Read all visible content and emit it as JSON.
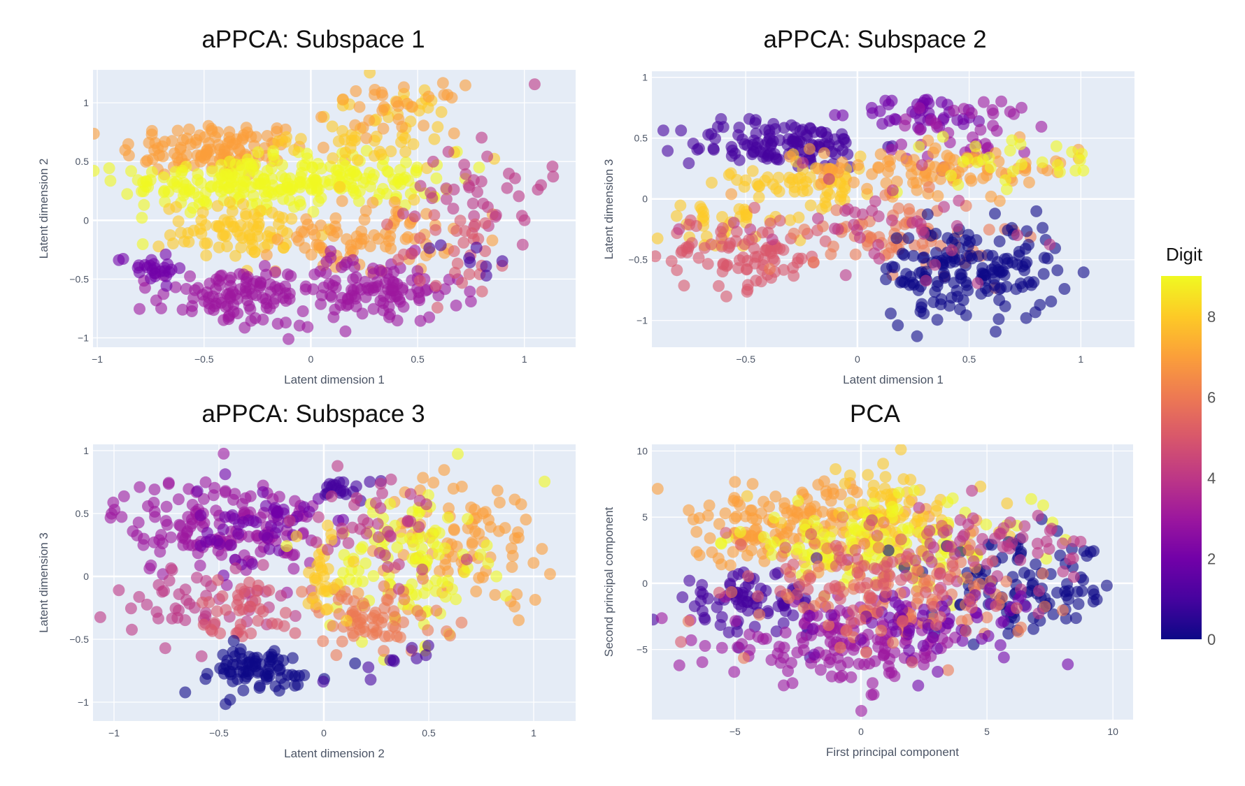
{
  "colorscale": {
    "title": "Digit",
    "ticks": [
      "0",
      "2",
      "4",
      "6",
      "8"
    ],
    "tick_values": [
      0,
      2,
      4,
      6,
      8
    ],
    "range": [
      0,
      9
    ],
    "colors": [
      "#0d0887",
      "#46039f",
      "#7201a8",
      "#9c179e",
      "#bd3786",
      "#d8576b",
      "#ed7953",
      "#fb9f3a",
      "#fdca26",
      "#f0f921"
    ]
  },
  "plot_background": "#e5ecf6",
  "chart_data": [
    {
      "type": "scatter",
      "title": "aPPCA: Subspace 1",
      "xlabel": "Latent dimension 1",
      "ylabel": "Latent dimension 2",
      "xlim": [
        -1.02,
        1.24
      ],
      "ylim": [
        -1.08,
        1.28
      ],
      "xticks": [
        -1,
        -0.5,
        0,
        0.5,
        1
      ],
      "xtick_labels": [
        "−1",
        "−0.5",
        "0",
        "0.5",
        "1"
      ],
      "yticks": [
        -1,
        -0.5,
        0,
        0.5,
        1
      ],
      "ytick_labels": [
        "−1",
        "−0.5",
        "0",
        "0.5",
        "1"
      ],
      "grid": true,
      "clusters": [
        {
          "digit": 7,
          "cx": -0.45,
          "cy": 0.6,
          "sx": 0.22,
          "sy": 0.12,
          "n": 120
        },
        {
          "digit": 9,
          "cx": -0.4,
          "cy": 0.3,
          "sx": 0.25,
          "sy": 0.12,
          "n": 140
        },
        {
          "digit": 9,
          "cx": 0.2,
          "cy": 0.35,
          "sx": 0.25,
          "sy": 0.12,
          "n": 110
        },
        {
          "digit": 8,
          "cx": 0.3,
          "cy": 0.75,
          "sx": 0.2,
          "sy": 0.2,
          "n": 60
        },
        {
          "digit": 7,
          "cx": 0.4,
          "cy": 0.95,
          "sx": 0.15,
          "sy": 0.1,
          "n": 30
        },
        {
          "digit": 8,
          "cx": -0.3,
          "cy": -0.1,
          "sx": 0.2,
          "sy": 0.12,
          "n": 80
        },
        {
          "digit": 7,
          "cx": 0.25,
          "cy": -0.15,
          "sx": 0.2,
          "sy": 0.15,
          "n": 80
        },
        {
          "digit": 3,
          "cx": -0.35,
          "cy": -0.65,
          "sx": 0.18,
          "sy": 0.12,
          "n": 110
        },
        {
          "digit": 3,
          "cx": 0.3,
          "cy": -0.6,
          "sx": 0.2,
          "sy": 0.14,
          "n": 110
        },
        {
          "digit": 2,
          "cx": -0.75,
          "cy": -0.4,
          "sx": 0.08,
          "sy": 0.06,
          "n": 25
        },
        {
          "digit": 4,
          "cx": 0.8,
          "cy": 0.3,
          "sx": 0.15,
          "sy": 0.25,
          "n": 40
        },
        {
          "digit": 5,
          "cx": 0.7,
          "cy": -0.3,
          "sx": 0.15,
          "sy": 0.2,
          "n": 30
        },
        {
          "digit": 1,
          "cx": 0.8,
          "cy": -0.3,
          "sx": 0.15,
          "sy": 0.1,
          "n": 8
        }
      ]
    },
    {
      "type": "scatter",
      "title": "aPPCA: Subspace 2",
      "xlabel": "Latent dimension 1",
      "ylabel": "Latent dimension 3",
      "xlim": [
        -0.92,
        1.24
      ],
      "ylim": [
        -1.22,
        1.05
      ],
      "xticks": [
        -0.5,
        0,
        0.5,
        1
      ],
      "xtick_labels": [
        "−0.5",
        "0",
        "0.5",
        "1"
      ],
      "yticks": [
        -1,
        -0.5,
        0,
        0.5,
        1
      ],
      "ytick_labels": [
        "−1",
        "−0.5",
        "0",
        "0.5",
        "1"
      ],
      "grid": true,
      "clusters": [
        {
          "digit": 1,
          "cx": -0.35,
          "cy": 0.45,
          "sx": 0.22,
          "sy": 0.1,
          "n": 120
        },
        {
          "digit": 2,
          "cx": 0.3,
          "cy": 0.7,
          "sx": 0.15,
          "sy": 0.07,
          "n": 40
        },
        {
          "digit": 3,
          "cx": 0.5,
          "cy": 0.55,
          "sx": 0.2,
          "sy": 0.15,
          "n": 40
        },
        {
          "digit": 8,
          "cx": -0.2,
          "cy": 0.15,
          "sx": 0.15,
          "sy": 0.1,
          "n": 60
        },
        {
          "digit": 7,
          "cx": 0.4,
          "cy": 0.25,
          "sx": 0.3,
          "sy": 0.1,
          "n": 100
        },
        {
          "digit": 9,
          "cx": 0.7,
          "cy": 0.3,
          "sx": 0.3,
          "sy": 0.1,
          "n": 30
        },
        {
          "digit": 8,
          "cx": -0.6,
          "cy": -0.15,
          "sx": 0.15,
          "sy": 0.15,
          "n": 40
        },
        {
          "digit": 5,
          "cx": -0.5,
          "cy": -0.45,
          "sx": 0.2,
          "sy": 0.15,
          "n": 90
        },
        {
          "digit": 6,
          "cx": 0.2,
          "cy": -0.3,
          "sx": 0.2,
          "sy": 0.15,
          "n": 70
        },
        {
          "digit": 0,
          "cx": 0.5,
          "cy": -0.6,
          "sx": 0.2,
          "sy": 0.2,
          "n": 160
        },
        {
          "digit": 4,
          "cx": 0.1,
          "cy": -0.2,
          "sx": 0.3,
          "sy": 0.2,
          "n": 40
        }
      ]
    },
    {
      "type": "scatter",
      "title": "aPPCA: Subspace 3",
      "xlabel": "Latent dimension 2",
      "ylabel": "Latent dimension 3",
      "xlim": [
        -1.1,
        1.2
      ],
      "ylim": [
        -1.15,
        1.05
      ],
      "xticks": [
        -1,
        -0.5,
        0,
        0.5,
        1
      ],
      "xtick_labels": [
        "−1",
        "−0.5",
        "0",
        "0.5",
        "1"
      ],
      "yticks": [
        -1,
        -0.5,
        0,
        0.5,
        1
      ],
      "ytick_labels": [
        "−1",
        "−0.5",
        "0",
        "0.5",
        "1"
      ],
      "grid": true,
      "clusters": [
        {
          "digit": 3,
          "cx": -0.5,
          "cy": 0.4,
          "sx": 0.25,
          "sy": 0.2,
          "n": 150
        },
        {
          "digit": 2,
          "cx": -0.3,
          "cy": 0.4,
          "sx": 0.15,
          "sy": 0.15,
          "n": 50
        },
        {
          "digit": 1,
          "cx": 0.1,
          "cy": 0.7,
          "sx": 0.06,
          "sy": 0.05,
          "n": 20
        },
        {
          "digit": 4,
          "cx": -0.6,
          "cy": -0.2,
          "sx": 0.2,
          "sy": 0.15,
          "n": 50
        },
        {
          "digit": 5,
          "cx": -0.35,
          "cy": -0.25,
          "sx": 0.12,
          "sy": 0.12,
          "n": 40
        },
        {
          "digit": 0,
          "cx": -0.35,
          "cy": -0.75,
          "sx": 0.18,
          "sy": 0.1,
          "n": 80
        },
        {
          "digit": 7,
          "cx": 0.7,
          "cy": 0.3,
          "sx": 0.2,
          "sy": 0.25,
          "n": 90
        },
        {
          "digit": 9,
          "cx": 0.4,
          "cy": 0.1,
          "sx": 0.18,
          "sy": 0.3,
          "n": 110
        },
        {
          "digit": 6,
          "cx": 0.2,
          "cy": -0.35,
          "sx": 0.2,
          "sy": 0.15,
          "n": 70
        },
        {
          "digit": 8,
          "cx": 0.0,
          "cy": 0.0,
          "sx": 0.06,
          "sy": 0.2,
          "n": 30
        },
        {
          "digit": 4,
          "cx": 0.3,
          "cy": 0.4,
          "sx": 0.15,
          "sy": 0.2,
          "n": 40
        },
        {
          "digit": 1,
          "cx": 0.3,
          "cy": -0.7,
          "sx": 0.1,
          "sy": 0.08,
          "n": 10
        }
      ]
    },
    {
      "type": "scatter",
      "title": "PCA",
      "xlabel": "First principal component",
      "ylabel": "Second principal component",
      "xlim": [
        -8.3,
        10.8
      ],
      "ylim": [
        -10.3,
        10.5
      ],
      "xticks": [
        -5,
        0,
        5,
        10
      ],
      "xtick_labels": [
        "−5",
        "0",
        "5",
        "10"
      ],
      "yticks": [
        -5,
        0,
        5,
        10
      ],
      "ytick_labels": [
        "−5",
        "0",
        "5",
        "10"
      ],
      "grid": true,
      "clusters": [
        {
          "digit": 7,
          "cx": -3.0,
          "cy": 4.5,
          "sx": 2.5,
          "sy": 1.5,
          "n": 150
        },
        {
          "digit": 8,
          "cx": 1.0,
          "cy": 5.0,
          "sx": 2.0,
          "sy": 2.0,
          "n": 80
        },
        {
          "digit": 9,
          "cx": 1.0,
          "cy": 3.0,
          "sx": 3.0,
          "sy": 1.5,
          "n": 130
        },
        {
          "digit": 1,
          "cx": -4.5,
          "cy": -1.5,
          "sx": 1.5,
          "sy": 1.2,
          "n": 80
        },
        {
          "digit": 0,
          "cx": 6.5,
          "cy": -0.5,
          "sx": 1.8,
          "sy": 1.8,
          "n": 100
        },
        {
          "digit": 3,
          "cx": -0.5,
          "cy": -4.5,
          "sx": 2.5,
          "sy": 1.5,
          "n": 150
        },
        {
          "digit": 6,
          "cx": 1.5,
          "cy": -1.0,
          "sx": 2.5,
          "sy": 2.0,
          "n": 110
        },
        {
          "digit": 4,
          "cx": 5.0,
          "cy": 3.0,
          "sx": 2.0,
          "sy": 1.5,
          "n": 60
        },
        {
          "digit": 2,
          "cx": 3.0,
          "cy": -3.0,
          "sx": 2.0,
          "sy": 1.5,
          "n": 60
        },
        {
          "digit": 5,
          "cx": 0.0,
          "cy": 0.5,
          "sx": 3.0,
          "sy": 2.0,
          "n": 80
        }
      ]
    }
  ]
}
